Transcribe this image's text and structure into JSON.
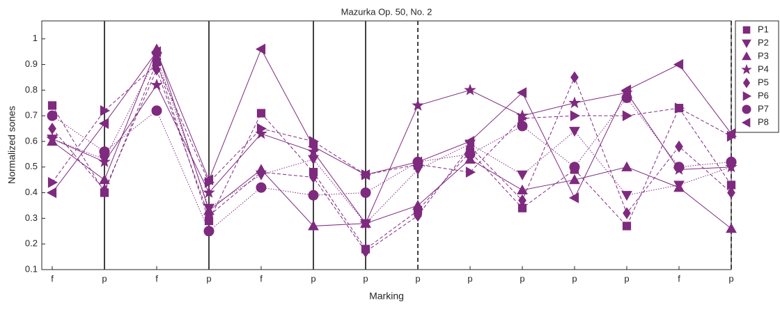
{
  "chart_data": {
    "type": "line",
    "title": "Mazurka Op. 50, No. 2",
    "x_label": "Marking",
    "y_label": "Normalized sones",
    "categories": [
      "f",
      "p",
      "f",
      "p",
      "f",
      "p",
      "p",
      "p",
      "p",
      "p",
      "p",
      "p",
      "f",
      "p"
    ],
    "ylim": [
      0.1,
      1.07
    ],
    "yticks": [
      0.1,
      0.2,
      0.3,
      0.4,
      0.5,
      0.6,
      0.7,
      0.8,
      0.9,
      1
    ],
    "vertical_lines": [
      {
        "index": 1,
        "style": "solid"
      },
      {
        "index": 3,
        "style": "solid"
      },
      {
        "index": 5,
        "style": "solid"
      },
      {
        "index": 6,
        "style": "solid"
      },
      {
        "index": 7,
        "style": "dashed"
      },
      {
        "index": 13,
        "style": "dashed"
      }
    ],
    "legend": "outside-top-right",
    "series": [
      {
        "name": "P1",
        "color": "#7e2a7e",
        "marker": "square",
        "line_style": "dashed",
        "values": [
          0.74,
          0.4,
          0.91,
          0.29,
          0.71,
          0.48,
          0.18,
          0.33,
          0.56,
          0.34,
          0.49,
          0.27,
          0.73,
          0.43
        ]
      },
      {
        "name": "P2",
        "color": "#7e2a7e",
        "marker": "triangle-down",
        "line_style": "dotted",
        "values": [
          0.61,
          0.53,
          0.93,
          0.34,
          0.47,
          0.53,
          0.28,
          0.49,
          0.59,
          0.47,
          0.64,
          0.39,
          0.43,
          0.5
        ]
      },
      {
        "name": "P3",
        "color": "#7e2a7e",
        "marker": "triangle-up",
        "line_style": "solid",
        "values": [
          0.6,
          0.45,
          0.96,
          0.33,
          0.49,
          0.27,
          0.28,
          0.35,
          0.53,
          0.41,
          0.45,
          0.5,
          0.42,
          0.26
        ]
      },
      {
        "name": "P4",
        "color": "#7e2a7e",
        "marker": "star",
        "line_style": "solid",
        "values": [
          0.61,
          0.52,
          0.82,
          0.4,
          0.63,
          0.56,
          0.28,
          0.74,
          0.8,
          0.7,
          0.75,
          0.79,
          0.49,
          0.5
        ]
      },
      {
        "name": "P5",
        "color": "#7e2a7e",
        "marker": "diamond",
        "line_style": "dashed",
        "values": [
          0.65,
          0.41,
          0.88,
          0.31,
          0.48,
          0.46,
          0.17,
          0.31,
          0.58,
          0.37,
          0.85,
          0.32,
          0.58,
          0.4
        ]
      },
      {
        "name": "P6",
        "color": "#7e2a7e",
        "marker": "triangle-right",
        "line_style": "dashed",
        "values": [
          0.44,
          0.72,
          0.9,
          0.44,
          0.65,
          0.6,
          0.47,
          0.51,
          0.48,
          0.69,
          0.7,
          0.7,
          0.73,
          0.62
        ]
      },
      {
        "name": "P7",
        "color": "#7e2a7e",
        "marker": "circle",
        "line_style": "dotted",
        "values": [
          0.7,
          0.56,
          0.72,
          0.25,
          0.42,
          0.39,
          0.4,
          0.52,
          0.55,
          0.66,
          0.5,
          0.77,
          0.5,
          0.52
        ]
      },
      {
        "name": "P8",
        "color": "#7e2a7e",
        "marker": "triangle-left",
        "line_style": "solid",
        "values": [
          0.4,
          0.67,
          0.95,
          0.45,
          0.96,
          0.58,
          0.47,
          0.52,
          0.6,
          0.79,
          0.38,
          0.8,
          0.9,
          0.63
        ]
      }
    ]
  }
}
